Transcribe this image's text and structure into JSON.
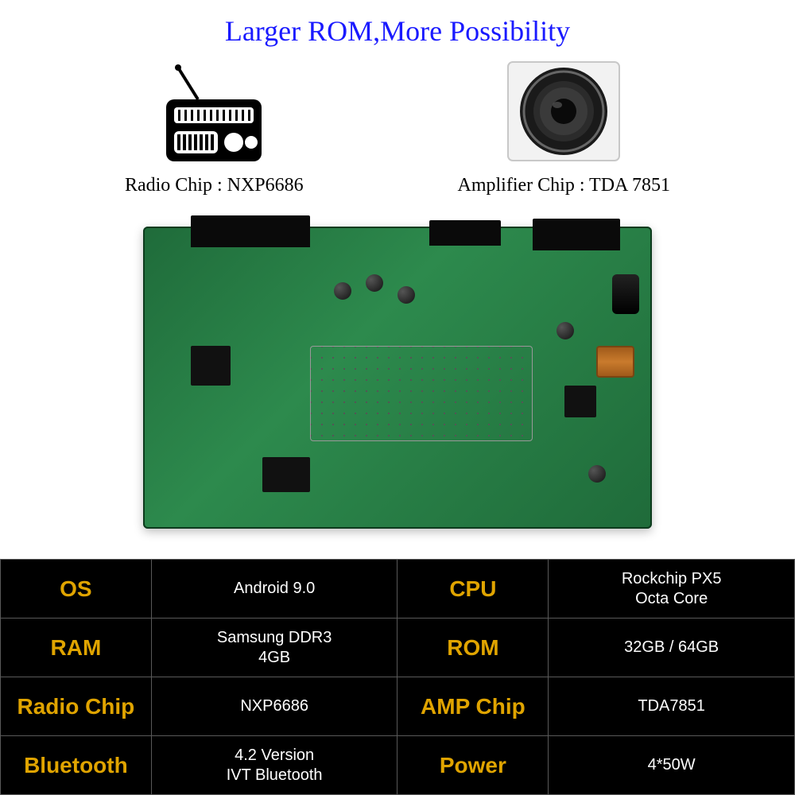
{
  "headline": "Larger ROM,More Possibility",
  "top": {
    "radio_label": "Radio Chip : NXP6686",
    "amp_label": "Amplifier Chip : TDA 7851"
  },
  "specs": {
    "rows": [
      {
        "k1": "OS",
        "v1": "Android 9.0",
        "k2": "CPU",
        "v2": "Rockchip PX5\nOcta Core"
      },
      {
        "k1": "RAM",
        "v1": "Samsung DDR3\n4GB",
        "k2": "ROM",
        "v2": "32GB / 64GB"
      },
      {
        "k1": "Radio Chip",
        "v1": "NXP6686",
        "k2": "AMP Chip",
        "v2": "TDA7851"
      },
      {
        "k1": "Bluetooth",
        "v1": "4.2 Version\nIVT Bluetooth",
        "k2": "Power",
        "v2": "4*50W"
      }
    ],
    "key_color": "#e0a400",
    "val_color": "#ffffff",
    "bg_color": "#000000",
    "border_color": "#595959"
  },
  "colors": {
    "headline": "#1a1aff",
    "board_green": "#2d8a4d"
  }
}
